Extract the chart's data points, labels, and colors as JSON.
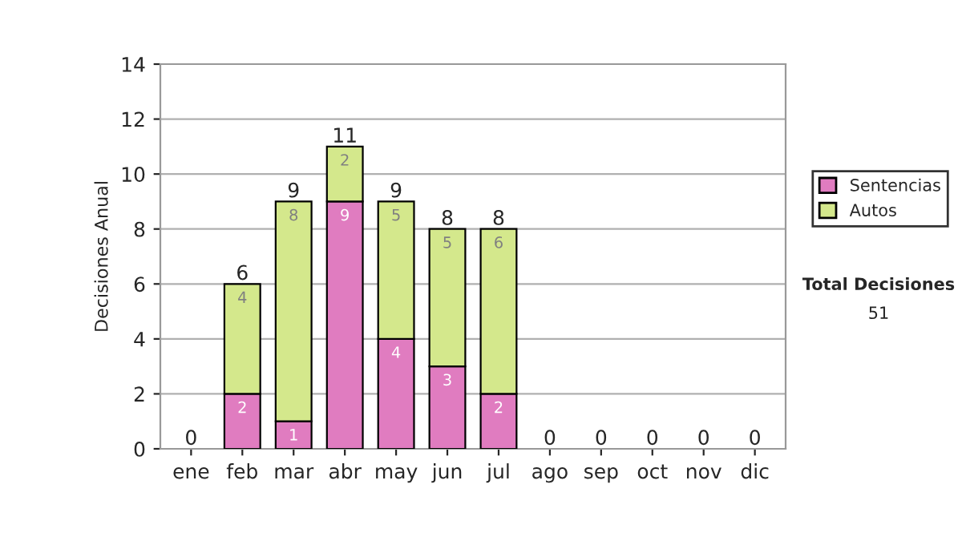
{
  "chart_data": {
    "type": "bar",
    "stacked": true,
    "ylabel": "Decisiones Anual",
    "categories": [
      "ene",
      "feb",
      "mar",
      "abr",
      "may",
      "jun",
      "jul",
      "ago",
      "sep",
      "oct",
      "nov",
      "dic"
    ],
    "series": [
      {
        "name": "Sentencias",
        "color": "#e07cc0",
        "values": [
          0,
          2,
          1,
          9,
          4,
          3,
          2,
          0,
          0,
          0,
          0,
          0
        ],
        "value_labels": [
          null,
          "2",
          "1",
          "9",
          "4",
          "3",
          "2",
          null,
          null,
          null,
          null,
          null
        ]
      },
      {
        "name": "Autos",
        "color": "#d4e88c",
        "values": [
          0,
          4,
          8,
          2,
          5,
          5,
          6,
          0,
          0,
          0,
          0,
          0
        ],
        "value_labels": [
          null,
          "4",
          "8",
          "2",
          "5",
          "5",
          "6",
          null,
          null,
          null,
          null,
          null
        ]
      }
    ],
    "totals": [
      "0",
      "6",
      "9",
      "11",
      "9",
      "8",
      "8",
      "0",
      "0",
      "0",
      "0",
      "0"
    ],
    "ylim": [
      0,
      14
    ],
    "yticks": [
      0,
      2,
      4,
      6,
      8,
      10,
      12,
      14
    ],
    "grid": "y",
    "legend": "right",
    "annotations": [
      "Total Decisiones",
      "51"
    ]
  }
}
